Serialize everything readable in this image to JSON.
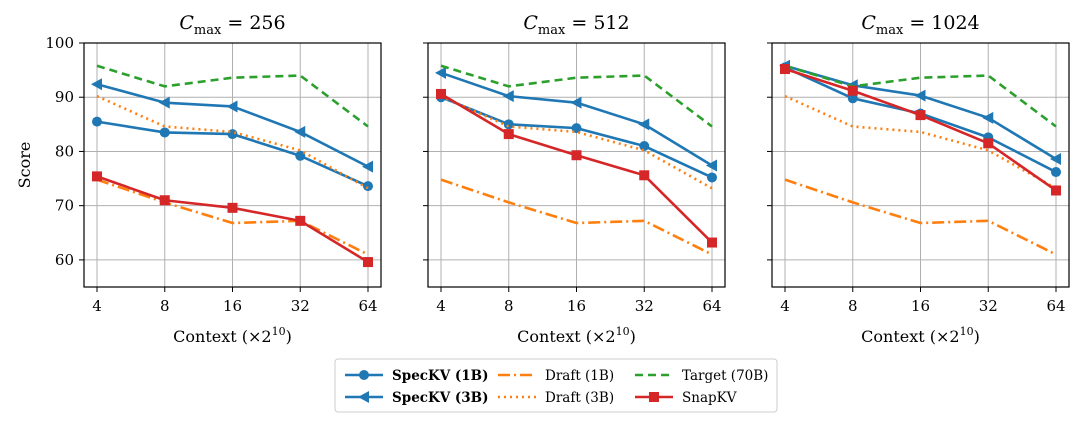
{
  "chart_data": [
    {
      "type": "line",
      "title_prefix": "C",
      "title_sub": "max",
      "title_value": "= 256",
      "xlabel_prefix": "Context",
      "xlabel_unit": "(×2",
      "xlabel_exp": "10",
      "xlabel_close": ")",
      "ylabel": "Score",
      "x": [
        4,
        8,
        16,
        32,
        64
      ],
      "x_tick_labels": [
        "4",
        "8",
        "16",
        "32",
        "64"
      ],
      "ylim": [
        55,
        100
      ],
      "y_ticks": [
        60,
        70,
        80,
        90,
        100
      ],
      "grid": true,
      "series": [
        {
          "name": "SpecKV (1B)",
          "values": [
            85.5,
            83.5,
            83.2,
            79.2,
            73.6
          ]
        },
        {
          "name": "SpecKV (3B)",
          "values": [
            92.4,
            89.0,
            88.3,
            83.6,
            77.2
          ]
        },
        {
          "name": "Draft (1B)",
          "values": [
            74.8,
            70.6,
            66.8,
            67.2,
            61.0
          ]
        },
        {
          "name": "Draft (3B)",
          "values": [
            90.2,
            84.6,
            83.6,
            80.2,
            73.2
          ]
        },
        {
          "name": "Target (70B)",
          "values": [
            95.8,
            92.0,
            93.6,
            94.0,
            84.6
          ]
        },
        {
          "name": "SnapKV",
          "values": [
            75.4,
            71.0,
            69.6,
            67.2,
            59.6
          ]
        }
      ]
    },
    {
      "type": "line",
      "title_prefix": "C",
      "title_sub": "max",
      "title_value": "= 512",
      "xlabel_prefix": "Context",
      "xlabel_unit": "(×2",
      "xlabel_exp": "10",
      "xlabel_close": ")",
      "ylabel": "",
      "x": [
        4,
        8,
        16,
        32,
        64
      ],
      "x_tick_labels": [
        "4",
        "8",
        "16",
        "32",
        "64"
      ],
      "ylim": [
        55,
        100
      ],
      "y_ticks": [
        60,
        70,
        80,
        90,
        100
      ],
      "grid": true,
      "series": [
        {
          "name": "SpecKV (1B)",
          "values": [
            90.0,
            85.0,
            84.3,
            81.0,
            75.2
          ]
        },
        {
          "name": "SpecKV (3B)",
          "values": [
            94.5,
            90.2,
            89.0,
            85.0,
            77.4
          ]
        },
        {
          "name": "Draft (1B)",
          "values": [
            74.8,
            70.6,
            66.8,
            67.2,
            61.0
          ]
        },
        {
          "name": "Draft (3B)",
          "values": [
            90.2,
            84.6,
            83.6,
            80.2,
            73.2
          ]
        },
        {
          "name": "Target (70B)",
          "values": [
            95.8,
            92.0,
            93.6,
            94.0,
            84.6
          ]
        },
        {
          "name": "SnapKV",
          "values": [
            90.6,
            83.2,
            79.3,
            75.6,
            63.2
          ]
        }
      ]
    },
    {
      "type": "line",
      "title_prefix": "C",
      "title_sub": "max",
      "title_value": "= 1024",
      "xlabel_prefix": "Context",
      "xlabel_unit": "(×2",
      "xlabel_exp": "10",
      "xlabel_close": ")",
      "ylabel": "",
      "x": [
        4,
        8,
        16,
        32,
        64
      ],
      "x_tick_labels": [
        "4",
        "8",
        "16",
        "32",
        "64"
      ],
      "ylim": [
        55,
        100
      ],
      "y_ticks": [
        60,
        70,
        80,
        90,
        100
      ],
      "grid": true,
      "series": [
        {
          "name": "SpecKV (1B)",
          "values": [
            95.5,
            89.8,
            87.0,
            82.6,
            76.2
          ]
        },
        {
          "name": "SpecKV (3B)",
          "values": [
            95.8,
            92.2,
            90.3,
            86.2,
            78.6
          ]
        },
        {
          "name": "Draft (1B)",
          "values": [
            74.8,
            70.6,
            66.8,
            67.2,
            61.0
          ]
        },
        {
          "name": "Draft (3B)",
          "values": [
            90.2,
            84.6,
            83.6,
            80.2,
            73.2
          ]
        },
        {
          "name": "Target (70B)",
          "values": [
            95.8,
            92.0,
            93.6,
            94.0,
            84.6
          ]
        },
        {
          "name": "SnapKV",
          "values": [
            95.2,
            91.2,
            86.7,
            81.5,
            72.8
          ]
        }
      ]
    }
  ],
  "legend": {
    "placement": "bottom-center",
    "columns": [
      [
        "SpecKV (1B)",
        "SpecKV (3B)"
      ],
      [
        "Draft (1B)",
        "Draft (3B)"
      ],
      [
        "Target (70B)",
        "SnapKV"
      ]
    ]
  },
  "styles": {
    "SpecKV (1B)": {
      "color": "#1f77b4",
      "dash": "",
      "marker": "circle",
      "bold": true
    },
    "SpecKV (3B)": {
      "color": "#1f77b4",
      "dash": "",
      "marker": "triangle-left",
      "bold": true
    },
    "Draft (1B)": {
      "color": "#ff7f0e",
      "dash": "12,4,2,4",
      "marker": "none",
      "bold": false
    },
    "Draft (3B)": {
      "color": "#ff7f0e",
      "dash": "2,4",
      "marker": "none",
      "bold": false
    },
    "Target (70B)": {
      "color": "#2ca02c",
      "dash": "8,5",
      "marker": "none",
      "bold": false
    },
    "SnapKV": {
      "color": "#d62728",
      "dash": "",
      "marker": "square",
      "bold": false
    }
  },
  "colors": {
    "grid": "#b0b0b0",
    "axis": "#000000"
  }
}
